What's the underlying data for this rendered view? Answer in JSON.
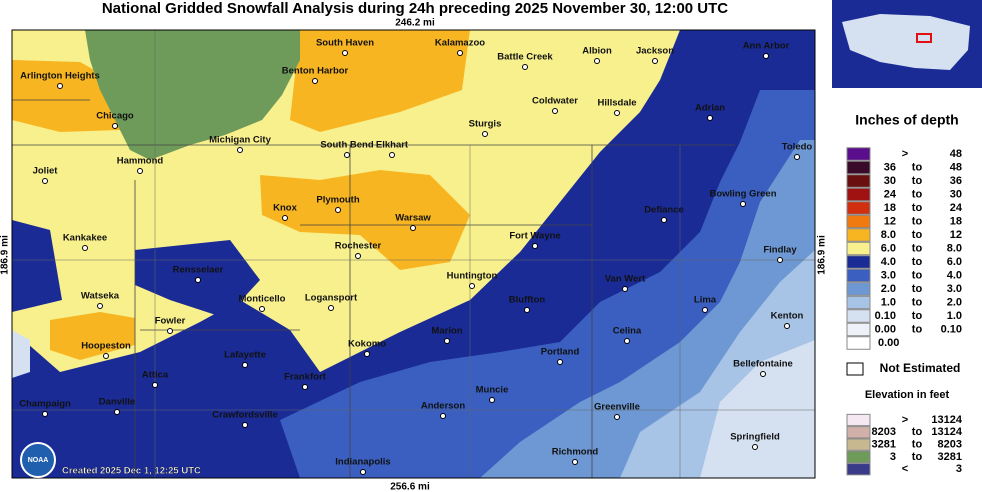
{
  "header": {
    "title": "National Gridded Snowfall Analysis during 24h preceding 2025 November 30, 12:00 UTC"
  },
  "scale": {
    "top": "246.2 mi",
    "bottom": "256.6 mi",
    "left": "186.9 mi",
    "right": "186.9 mi"
  },
  "cities": [
    "South Haven",
    "Kalamazoo",
    "Battle Creek",
    "Albion",
    "Jackson",
    "Ann Arbor",
    "Arlington Heights",
    "Benton Harbor",
    "Chicago",
    "Coldwater",
    "Hillsdale",
    "Adrian",
    "Michigan City",
    "South Bend",
    "Elkhart",
    "Sturgis",
    "Hammond",
    "Toledo",
    "Joliet",
    "Knox",
    "Plymouth",
    "Warsaw",
    "Defiance",
    "Bowling Green",
    "Kankakee",
    "Rochester",
    "Fort Wayne",
    "Findlay",
    "Rensselaer",
    "Huntington",
    "Van Wert",
    "Watseka",
    "Monticello",
    "Logansport",
    "Bluffton",
    "Lima",
    "Fowler",
    "Marion",
    "Kenton",
    "Celina",
    "Hoopeston",
    "Kokomo",
    "Portland",
    "Bellefontaine",
    "Lafayette",
    "Frankfort",
    "Attica",
    "Muncie",
    "Champaign",
    "Danville",
    "Anderson",
    "Greenville",
    "Crawfordsville",
    "Springfield",
    "Richmond",
    "Indianapolis"
  ],
  "credit": "Created 2025 Dec 1, 12:25 UTC",
  "logo": "NOAA",
  "legend": {
    "title": "Inches of depth",
    "rows": [
      {
        "color": "#5a0d8c",
        "cells": [
          ">",
          "48"
        ]
      },
      {
        "color": "#3a0a2a",
        "cells": [
          "36",
          "to",
          "48"
        ]
      },
      {
        "color": "#6a0f0f",
        "cells": [
          "30",
          "to",
          "36"
        ]
      },
      {
        "color": "#a01212",
        "cells": [
          "24",
          "to",
          "30"
        ]
      },
      {
        "color": "#d03010",
        "cells": [
          "18",
          "to",
          "24"
        ]
      },
      {
        "color": "#f07a10",
        "cells": [
          "12",
          "to",
          "18"
        ]
      },
      {
        "color": "#f7b521",
        "cells": [
          "8.0",
          "to",
          "12"
        ]
      },
      {
        "color": "#f8f08c",
        "cells": [
          "6.0",
          "to",
          "8.0"
        ]
      },
      {
        "color": "#1a2b96",
        "cells": [
          "4.0",
          "to",
          "6.0"
        ]
      },
      {
        "color": "#3a5fc0",
        "cells": [
          "3.0",
          "to",
          "4.0"
        ]
      },
      {
        "color": "#6e98d4",
        "cells": [
          "2.0",
          "to",
          "3.0"
        ]
      },
      {
        "color": "#a7c3e6",
        "cells": [
          "1.0",
          "to",
          "2.0"
        ]
      },
      {
        "color": "#d5e1f1",
        "cells": [
          "0.10",
          "to",
          "1.0"
        ]
      },
      {
        "color": "#eef1f8",
        "cells": [
          "0.00",
          "to",
          "0.10"
        ]
      },
      {
        "color": "#ffffff",
        "cells": [
          "0.00"
        ]
      }
    ],
    "not_estimated": "Not Estimated",
    "elevation": {
      "title": "Elevation in feet",
      "rows": [
        {
          "color": "#f6e8f2",
          "cells": [
            ">",
            "13124"
          ]
        },
        {
          "color": "#d0b0a8",
          "cells": [
            "8203",
            "to",
            "13124"
          ]
        },
        {
          "color": "#c8b890",
          "cells": [
            "3281",
            "to",
            "8203"
          ]
        },
        {
          "color": "#6e9a5a",
          "cells": [
            "3",
            "to",
            "3281"
          ]
        },
        {
          "color": "#3a3a8a",
          "cells": [
            "<",
            "3"
          ]
        }
      ]
    }
  }
}
